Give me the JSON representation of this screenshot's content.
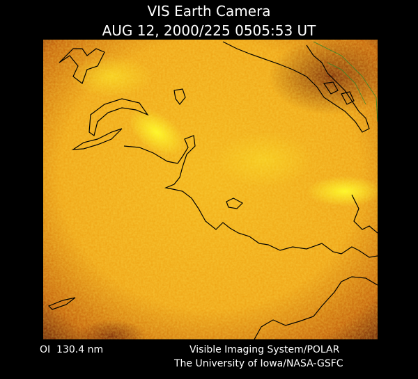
{
  "header": {
    "title": "VIS Earth Camera",
    "subtitle": "AUG 12, 2000/225 0505:53 UT"
  },
  "footer": {
    "band": "OI  130.4 nm",
    "credit": [
      "Visible Imaging System/POLAR",
      "The University of Iowa/NASA-GSFC"
    ]
  }
}
